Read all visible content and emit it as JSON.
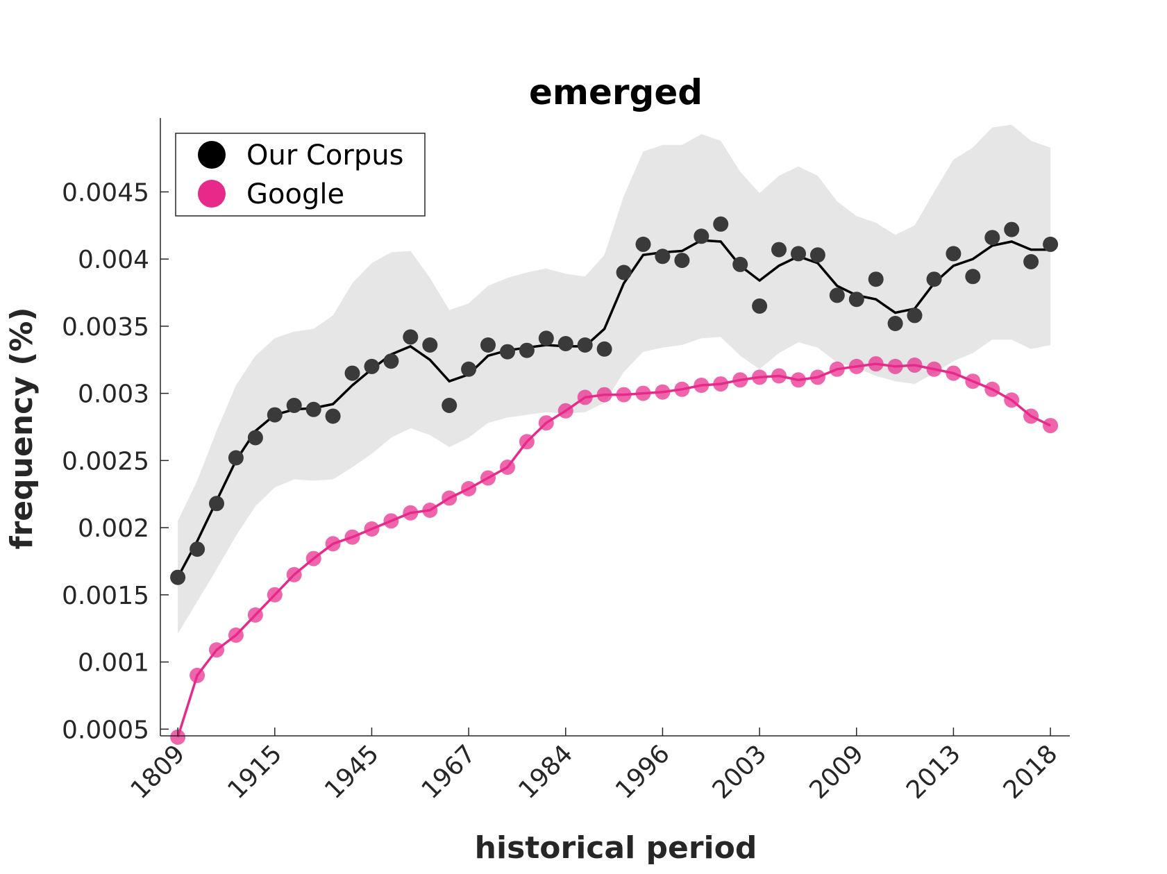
{
  "chart_data": {
    "type": "line",
    "title": "emerged",
    "xlabel": "historical period",
    "ylabel": "frequency (%)",
    "x_tick_labels": [
      "1809",
      "1915",
      "1945",
      "1967",
      "1984",
      "1996",
      "2003",
      "2009",
      "2013",
      "2018"
    ],
    "x_tick_positions": [
      1,
      6,
      11,
      16,
      21,
      26,
      31,
      36,
      41,
      46
    ],
    "xlim": [
      0.1,
      47
    ],
    "ylim": [
      0.00045,
      0.00505
    ],
    "y_ticks": [
      0.0005,
      0.001,
      0.0015,
      0.002,
      0.0025,
      0.003,
      0.0035,
      0.004,
      0.0045
    ],
    "y_tick_labels": [
      "0.0005",
      "0.001",
      "0.0015",
      "0.002",
      "0.0025",
      "0.003",
      "0.0035",
      "0.004",
      "0.0045"
    ],
    "legend_position": "top-left",
    "colors": {
      "corpus": "#000000",
      "corpus_points": "#3a3a3a",
      "google": "#e7298a",
      "band": "#e6e6e6"
    },
    "series": [
      {
        "name": "Our Corpus",
        "x": [
          1,
          2,
          3,
          4,
          5,
          6,
          7,
          8,
          9,
          10,
          11,
          12,
          13,
          14,
          15,
          16,
          17,
          18,
          19,
          20,
          21,
          22,
          23,
          24,
          25,
          26,
          27,
          28,
          29,
          30,
          31,
          32,
          33,
          34,
          35,
          36,
          37,
          38,
          39,
          40,
          41,
          42,
          43,
          44,
          45,
          46
        ],
        "points": [
          0.00163,
          0.00184,
          0.00218,
          0.00252,
          0.00267,
          0.00284,
          0.00291,
          0.00288,
          0.00283,
          0.00315,
          0.0032,
          0.00324,
          0.00342,
          0.00336,
          0.00291,
          0.00318,
          0.00336,
          0.00331,
          0.00332,
          0.00341,
          0.00337,
          0.00336,
          0.00333,
          0.0039,
          0.00411,
          0.00402,
          0.00399,
          0.00417,
          0.00426,
          0.00396,
          0.00365,
          0.00407,
          0.00404,
          0.00403,
          0.00373,
          0.0037,
          0.00385,
          0.00352,
          0.00358,
          0.00385,
          0.00404,
          0.00387,
          0.00416,
          0.00422,
          0.00398,
          0.00411
        ],
        "smooth": [
          0.00163,
          0.0019,
          0.0022,
          0.0025,
          0.00272,
          0.00284,
          0.00288,
          0.00289,
          0.00292,
          0.00306,
          0.00318,
          0.00329,
          0.00335,
          0.00325,
          0.00309,
          0.00314,
          0.00328,
          0.00332,
          0.00334,
          0.00336,
          0.00335,
          0.00335,
          0.00348,
          0.00382,
          0.00403,
          0.00405,
          0.00406,
          0.00414,
          0.00413,
          0.00395,
          0.00384,
          0.00395,
          0.00402,
          0.00397,
          0.0038,
          0.00373,
          0.0037,
          0.0036,
          0.00363,
          0.00382,
          0.00395,
          0.004,
          0.0041,
          0.00413,
          0.00407,
          0.00407
        ],
        "band_upper": [
          0.00205,
          0.00235,
          0.00272,
          0.00306,
          0.00328,
          0.00341,
          0.00346,
          0.00348,
          0.00358,
          0.00382,
          0.00397,
          0.00405,
          0.00406,
          0.00386,
          0.00362,
          0.00367,
          0.0038,
          0.00386,
          0.0039,
          0.00393,
          0.00389,
          0.00387,
          0.00403,
          0.00447,
          0.0048,
          0.00485,
          0.00485,
          0.00493,
          0.00488,
          0.00465,
          0.00449,
          0.00462,
          0.00469,
          0.00462,
          0.00443,
          0.00432,
          0.00427,
          0.00418,
          0.00425,
          0.0045,
          0.00474,
          0.00483,
          0.00498,
          0.005,
          0.00488,
          0.00483
        ],
        "band_lower": [
          0.00121,
          0.00145,
          0.00169,
          0.00194,
          0.00216,
          0.0023,
          0.00236,
          0.00235,
          0.00236,
          0.00245,
          0.00255,
          0.00267,
          0.00274,
          0.00269,
          0.0026,
          0.00267,
          0.00278,
          0.00282,
          0.00284,
          0.00286,
          0.00285,
          0.00286,
          0.00293,
          0.00316,
          0.00331,
          0.00334,
          0.00336,
          0.00341,
          0.00342,
          0.00328,
          0.00318,
          0.0033,
          0.00338,
          0.00334,
          0.00323,
          0.00319,
          0.00313,
          0.00309,
          0.00307,
          0.00315,
          0.00324,
          0.0033,
          0.0034,
          0.0034,
          0.00333,
          0.00336
        ]
      },
      {
        "name": "Google",
        "x": [
          1,
          2,
          3,
          4,
          5,
          6,
          7,
          8,
          9,
          10,
          11,
          12,
          13,
          14,
          15,
          16,
          17,
          18,
          19,
          20,
          21,
          22,
          23,
          24,
          25,
          26,
          27,
          28,
          29,
          30,
          31,
          32,
          33,
          34,
          35,
          36,
          37,
          38,
          39,
          40,
          41,
          42,
          43,
          44,
          45,
          46
        ],
        "points": [
          0.00044,
          0.0009,
          0.00109,
          0.0012,
          0.00135,
          0.0015,
          0.00165,
          0.00177,
          0.00188,
          0.00193,
          0.00199,
          0.00205,
          0.00211,
          0.00213,
          0.00222,
          0.00229,
          0.00237,
          0.00245,
          0.00264,
          0.00278,
          0.00287,
          0.00297,
          0.00299,
          0.00299,
          0.003,
          0.00301,
          0.00303,
          0.00306,
          0.00307,
          0.0031,
          0.00312,
          0.00313,
          0.0031,
          0.00312,
          0.00318,
          0.0032,
          0.00322,
          0.0032,
          0.00321,
          0.00318,
          0.00315,
          0.00309,
          0.00303,
          0.00295,
          0.00283,
          0.00276
        ],
        "smooth": [
          0.00044,
          0.0009,
          0.00109,
          0.0012,
          0.00135,
          0.0015,
          0.00165,
          0.00177,
          0.00188,
          0.00193,
          0.00199,
          0.00205,
          0.00211,
          0.00213,
          0.00222,
          0.00229,
          0.00237,
          0.00245,
          0.00264,
          0.00278,
          0.00287,
          0.00297,
          0.00299,
          0.00299,
          0.003,
          0.00301,
          0.00303,
          0.00306,
          0.00307,
          0.0031,
          0.00312,
          0.00313,
          0.0031,
          0.00312,
          0.00318,
          0.0032,
          0.00322,
          0.0032,
          0.00321,
          0.00318,
          0.00315,
          0.00309,
          0.00303,
          0.00295,
          0.00283,
          0.00276
        ]
      }
    ]
  }
}
